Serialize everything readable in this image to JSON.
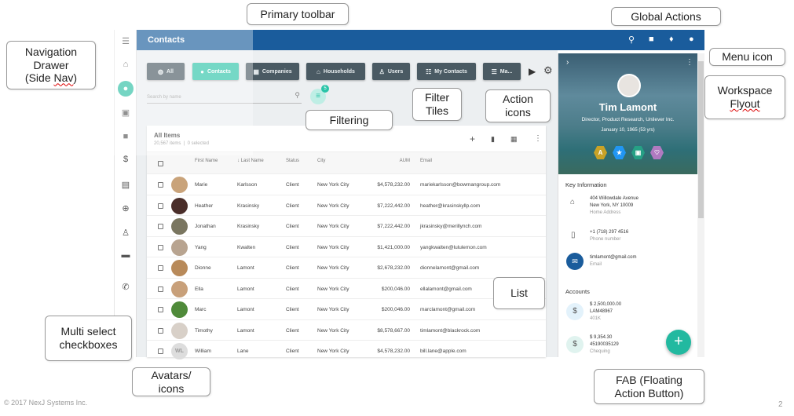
{
  "app": {
    "title": "Contacts",
    "colors": {
      "header": "#1a5c9c",
      "accent": "#2bc4a8",
      "tile": "#4a5a63"
    }
  },
  "global_actions": [
    "search-icon",
    "chat-icon",
    "bell-icon",
    "account-icon"
  ],
  "sidebar": {
    "items": [
      "menu-icon",
      "home-icon",
      "contacts-icon",
      "calendar-icon",
      "briefcase-icon",
      "dollar-icon",
      "id-card-icon",
      "target-icon",
      "user-icon",
      "message-icon",
      "phone-icon"
    ],
    "active": "contacts-icon"
  },
  "tiles": [
    {
      "label": "All",
      "icon": "globe-icon"
    },
    {
      "label": "Contacts",
      "icon": "person-icon",
      "active": true
    },
    {
      "label": "Companies",
      "icon": "building-icon"
    },
    {
      "label": "Households",
      "icon": "house-icon"
    },
    {
      "label": "Users",
      "icon": "user-icon"
    },
    {
      "label": "My Contacts",
      "icon": "sliders-icon"
    },
    {
      "label": "Ma...",
      "icon": "list-icon"
    }
  ],
  "search": {
    "placeholder": "Search by name"
  },
  "filter": {
    "badge": "5"
  },
  "list": {
    "title": "All Items",
    "count": "20,567 items  |  0 selected",
    "columns": [
      "First Name",
      "↓ Last Name",
      "Status",
      "City",
      "AUM",
      "Email"
    ],
    "rows": [
      {
        "first": "Marie",
        "last": "Karlsson",
        "status": "Client",
        "city": "New York City",
        "aum": "$4,578,232.00",
        "email": "mariekarlsson@bowmangroup.com",
        "avatar": "#c9a37a"
      },
      {
        "first": "Heather",
        "last": "Krasinsky",
        "status": "Client",
        "city": "New York City",
        "aum": "$7,222,442.00",
        "email": "heather@krasinskyllp.com",
        "avatar": "#4a2e2a"
      },
      {
        "first": "Jonathan",
        "last": "Krasinsky",
        "status": "Client",
        "city": "New York City",
        "aum": "$7,222,442.00",
        "email": "jkrasinsky@merillynch.com",
        "avatar": "#7a7660"
      },
      {
        "first": "Yang",
        "last": "Kwalten",
        "status": "Client",
        "city": "New York City",
        "aum": "$1,421,000.00",
        "email": "yangkwalten@lululemon.com",
        "avatar": "#b8a490"
      },
      {
        "first": "Dionne",
        "last": "Lamont",
        "status": "Client",
        "city": "New York City",
        "aum": "$2,678,232.00",
        "email": "dionnelamont@gmail.com",
        "avatar": "#b88a5a"
      },
      {
        "first": "Ella",
        "last": "Lamont",
        "status": "Client",
        "city": "New York City",
        "aum": "$200,046.00",
        "email": "ellalamont@gmail.com",
        "avatar": "#c8a07a"
      },
      {
        "first": "Marc",
        "last": "Lamont",
        "status": "Client",
        "city": "New York City",
        "aum": "$200,046.00",
        "email": "marclamont@gmail.com",
        "avatar": "#4f8a3a"
      },
      {
        "first": "Timothy",
        "last": "Lamont",
        "status": "Client",
        "city": "New York City",
        "aum": "$8,578,667.00",
        "email": "timlamont@blackrock.com",
        "avatar": "#d8d0c8"
      },
      {
        "first": "William",
        "last": "Lane",
        "status": "Client",
        "city": "New York City",
        "aum": "$4,578,232.00",
        "email": "bill.lane@apple.com",
        "avatar": "#dddddd",
        "initials": "WL"
      }
    ]
  },
  "flyout": {
    "name": "Tim Lamont",
    "title": "Director, Product Research, Unilever Inc.",
    "dob": "January 10, 1965 (53 yrs)",
    "badges": [
      {
        "icon": "A",
        "color": "#c9a227"
      },
      {
        "icon": "★",
        "color": "#2196f3"
      },
      {
        "icon": "lock-icon",
        "color": "#26a085"
      },
      {
        "icon": "♡",
        "color": "#b07ac0"
      }
    ],
    "key_info_title": "Key Information",
    "address1": "404 Willowdale Avenue",
    "address2": "New York, NY 10009",
    "address_label": "Home Address",
    "phone": "+1 (718) 297 4516",
    "phone_label": "Phone number",
    "email": "timlamont@gmail.com",
    "email_label": "Email",
    "accounts_title": "Accounts",
    "accounts": [
      {
        "amount": "$ 2,500,000.00",
        "number": "LAM48967",
        "type": "401K"
      },
      {
        "amount": "$ 9,354.30",
        "number": "45190035129",
        "type": "Chequing"
      }
    ]
  },
  "callouts": {
    "nav": "Navigation Drawer (Side Nav)",
    "nav1": "Navigation",
    "nav2": "Drawer",
    "nav3": "(Side ",
    "nav3b": "Nav",
    ")": ")",
    "toolbar": "Primary toolbar",
    "global": "Global Actions",
    "menu": "Menu icon",
    "flyout1": "Workspace",
    "flyout2": "Flyout",
    "tiles1": "Filter",
    "tiles2": "Tiles",
    "actions1": "Action",
    "actions2": "icons",
    "filtering": "Filtering",
    "list": "List",
    "multi1": "Multi select",
    "multi2": "checkboxes",
    "avatars1": "Avatars/",
    "avatars2": "icons",
    "fab1": "FAB (Floating",
    "fab2": "Action Button)"
  },
  "footer": {
    "copyright": "© 2017 NexJ Systems Inc.",
    "page": "2"
  }
}
